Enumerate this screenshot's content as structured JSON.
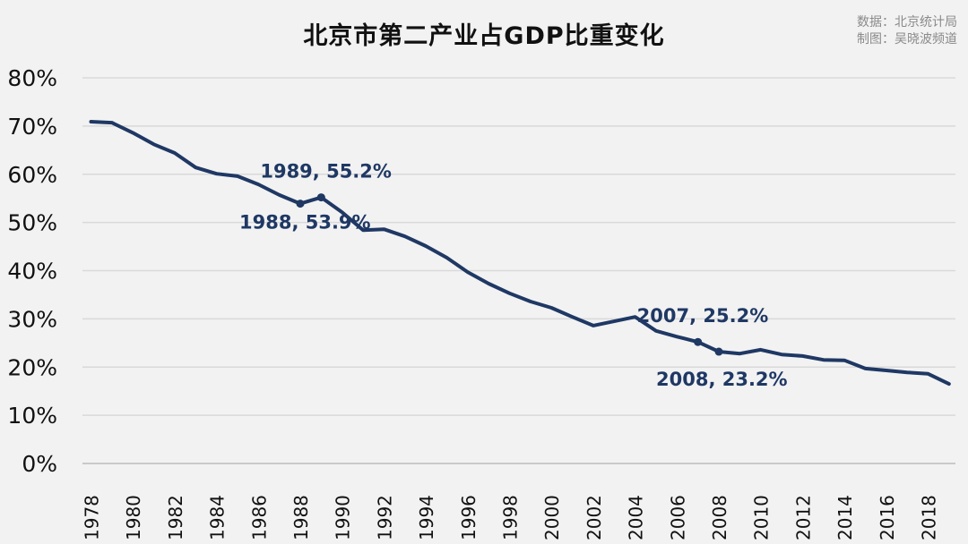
{
  "chart_data": {
    "type": "line",
    "title": "北京市第二产业占GDP比重变化",
    "source_lines": [
      "数据：北京统计局",
      "制图：吴晓波频道"
    ],
    "xlabel": "",
    "ylabel": "",
    "ylim": [
      0,
      80
    ],
    "y_ticks": [
      "0%",
      "10%",
      "20%",
      "30%",
      "40%",
      "50%",
      "60%",
      "70%",
      "80%"
    ],
    "x_ticks": [
      "1978",
      "1980",
      "1982",
      "1984",
      "1986",
      "1988",
      "1990",
      "1992",
      "1994",
      "1996",
      "1998",
      "2000",
      "2002",
      "2004",
      "2006",
      "2008",
      "2010",
      "2012",
      "2014",
      "2016",
      "2018"
    ],
    "grid": true,
    "line_color": "#1f3864",
    "x": [
      1978,
      1979,
      1980,
      1981,
      1982,
      1983,
      1984,
      1985,
      1986,
      1987,
      1988,
      1989,
      1990,
      1991,
      1992,
      1993,
      1994,
      1995,
      1996,
      1997,
      1998,
      1999,
      2000,
      2001,
      2002,
      2003,
      2004,
      2005,
      2006,
      2007,
      2008,
      2009,
      2010,
      2011,
      2012,
      2013,
      2014,
      2015,
      2016,
      2017,
      2018,
      2019
    ],
    "values": [
      70.9,
      70.7,
      68.6,
      66.2,
      64.4,
      61.4,
      60.1,
      59.6,
      57.9,
      55.7,
      53.9,
      55.2,
      52.1,
      48.4,
      48.6,
      47.1,
      45.1,
      42.7,
      39.7,
      37.3,
      35.3,
      33.6,
      32.3,
      30.4,
      28.6,
      29.5,
      30.4,
      27.5,
      26.3,
      25.2,
      23.2,
      22.8,
      23.6,
      22.6,
      22.3,
      21.5,
      21.4,
      19.7,
      19.3,
      18.9,
      18.6,
      16.5
    ],
    "annotations": [
      {
        "x": 1988,
        "y": 53.9,
        "label": "1988, 53.9%"
      },
      {
        "x": 1989,
        "y": 55.2,
        "label": "1989, 55.2%"
      },
      {
        "x": 2007,
        "y": 25.2,
        "label": "2007, 25.2%"
      },
      {
        "x": 2008,
        "y": 23.2,
        "label": "2008, 23.2%"
      }
    ]
  }
}
